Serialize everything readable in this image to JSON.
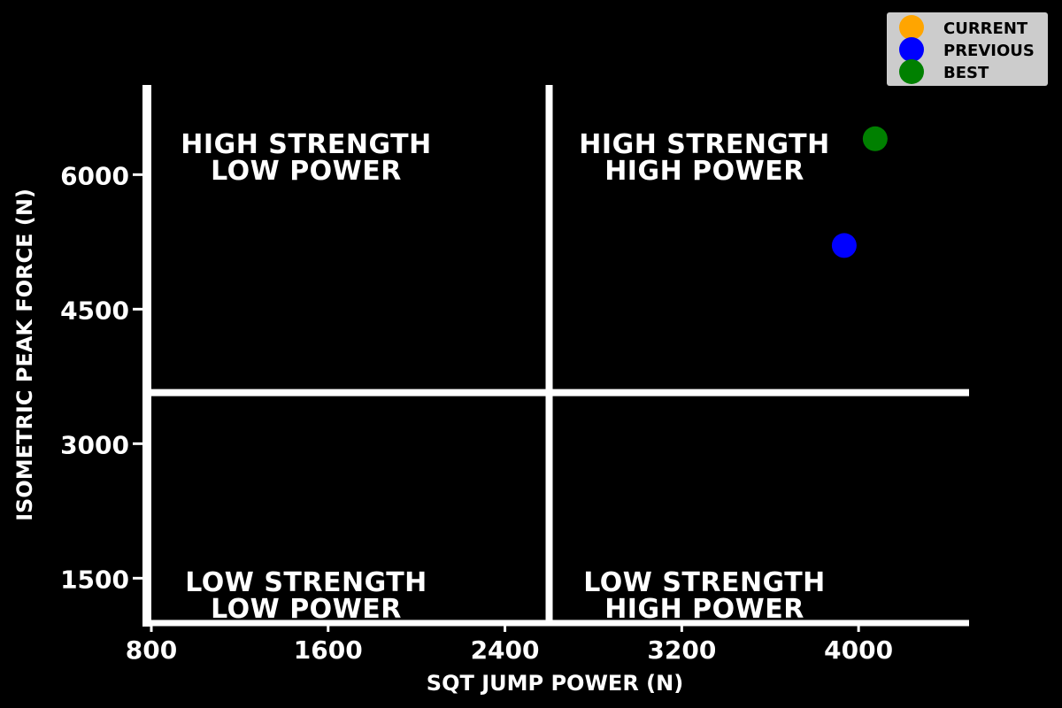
{
  "chart_data": {
    "type": "scatter",
    "title": "",
    "xlabel": "SQT JUMP POWER (N)",
    "ylabel": "ISOMETRIC PEAK FORCE (N)",
    "xlim": [
      760,
      4500
    ],
    "ylim": [
      1000,
      7000
    ],
    "xticks": [
      800,
      1600,
      2400,
      3200,
      4000
    ],
    "yticks": [
      1500,
      3000,
      4500,
      6000
    ],
    "x_threshold": 2600,
    "y_threshold": 3570,
    "grid": false,
    "legend_position": "top-right",
    "colors": {
      "background": "#000000",
      "axes": "#ffffff",
      "legend_bg": "#cccccc"
    },
    "quadrants": [
      {
        "id": "top-left",
        "line1": "HIGH STRENGTH",
        "line2": "LOW POWER"
      },
      {
        "id": "top-right",
        "line1": "HIGH STRENGTH",
        "line2": "HIGH POWER"
      },
      {
        "id": "bottom-left",
        "line1": "LOW STRENGTH",
        "line2": "LOW POWER"
      },
      {
        "id": "bottom-right",
        "line1": "LOW STRENGTH",
        "line2": "HIGH POWER"
      }
    ],
    "series": [
      {
        "name": "CURRENT",
        "color": "#ffa500",
        "points": []
      },
      {
        "name": "PREVIOUS",
        "color": "#0000ff",
        "points": [
          {
            "x": 3935,
            "y": 5210
          }
        ]
      },
      {
        "name": "BEST",
        "color": "#008000",
        "points": [
          {
            "x": 4075,
            "y": 6400
          }
        ]
      }
    ]
  }
}
